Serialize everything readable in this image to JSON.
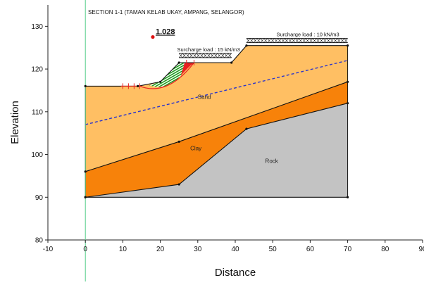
{
  "title": "SECTION 1-1 (TAMAN KELAB UKAY, AMPANG, SELANGOR)",
  "axes": {
    "xlabel": "Distance",
    "ylabel": "Elevation",
    "xlim": [
      -10,
      90
    ],
    "ylim": [
      80,
      135
    ],
    "xticks": [
      "-10",
      "0",
      "10",
      "20",
      "30",
      "40",
      "50",
      "60",
      "70",
      "80",
      "90"
    ],
    "yticks": [
      "80",
      "90",
      "100",
      "110",
      "120",
      "130"
    ]
  },
  "factor_of_safety": "1.028",
  "surcharges": [
    {
      "label": "Surcharge load : 15 kN/m3",
      "x": [
        25,
        39
      ],
      "y": 122.5
    },
    {
      "label": "Surcharge load : 10 kN/m3",
      "x": [
        43,
        70
      ],
      "y": 126
    }
  ],
  "layers": [
    {
      "name": "Sand",
      "color": "#ffbf63"
    },
    {
      "name": "Clay",
      "color": "#f7820a"
    },
    {
      "name": "Rock",
      "color": "#c3c3c3"
    }
  ],
  "chart_data": {
    "type": "cross-section",
    "ground_surface": [
      [
        0,
        116
      ],
      [
        14,
        116
      ],
      [
        20,
        117
      ],
      [
        25,
        121.5
      ],
      [
        39,
        121.5
      ],
      [
        43,
        125.5
      ],
      [
        70,
        125.5
      ]
    ],
    "sand_clay_boundary": [
      [
        0,
        96
      ],
      [
        25,
        103
      ],
      [
        70,
        117
      ]
    ],
    "clay_rock_boundary": [
      [
        0,
        90
      ],
      [
        25,
        93
      ],
      [
        43,
        106
      ],
      [
        70,
        112
      ]
    ],
    "base": [
      [
        0,
        90
      ],
      [
        70,
        90
      ]
    ],
    "water_table": [
      [
        0,
        107
      ],
      [
        70,
        122
      ]
    ],
    "slip_center": [
      18,
      127.5
    ],
    "colors": {
      "water_table": "#2a33cc",
      "slip_fill": "#1a9a1a",
      "slip_red": "#e82020",
      "slip_center": "#dd1111",
      "grid_line_v": "#55cc88"
    }
  }
}
